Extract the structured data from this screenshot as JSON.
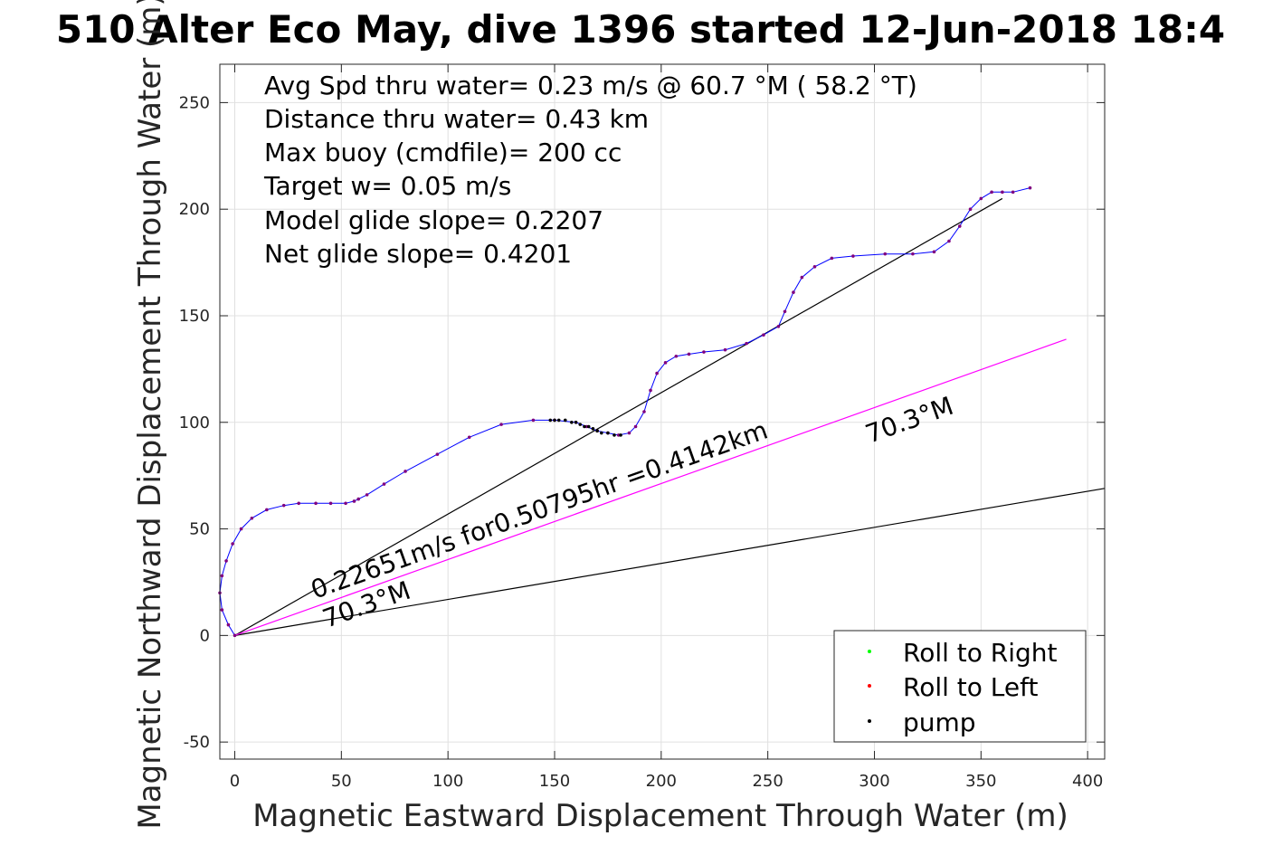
{
  "chart_data": {
    "type": "line",
    "title": "510 Alter Eco May, dive 1396 started 12-Jun-2018 18:4",
    "xlabel": "Magnetic Eastward Displacement Through Water (m)",
    "ylabel": "Magnetic Northward Displacement Through Water (m)",
    "xlim": [
      -7,
      408
    ],
    "ylim": [
      -58,
      268
    ],
    "xticks": [
      0,
      50,
      100,
      150,
      200,
      250,
      300,
      350,
      400
    ],
    "yticks": [
      -50,
      0,
      50,
      100,
      150,
      200,
      250
    ],
    "grid": true,
    "legend_position": "bottom-right",
    "annotations": [
      "Avg Spd thru water=  0.23 m/s @  60.7 °M ( 58.2 °T)",
      "Distance thru water=  0.43 km",
      "Max buoy (cmdfile)= 200 cc",
      "Target w= 0.05 m/s",
      "Model glide slope= 0.2207",
      "Net glide slope= 0.4201"
    ],
    "line_labels": {
      "speed": "0.22651m/s for0.50795hr =0.4142km",
      "heading_near": "70.3°M",
      "heading_far": "70.3°M"
    },
    "track": {
      "color": "#0000ff",
      "x": [
        0,
        -3,
        -6,
        -7,
        -6,
        -4,
        -1,
        3,
        8,
        15,
        23,
        30,
        38,
        45,
        52,
        56,
        58,
        62,
        70,
        80,
        95,
        110,
        125,
        140,
        150,
        160,
        165,
        170,
        175,
        180,
        185,
        188,
        192,
        195,
        198,
        202,
        207,
        213,
        220,
        230,
        240,
        248,
        255,
        258,
        262,
        266,
        272,
        280,
        290,
        305,
        318,
        328,
        335,
        340,
        345,
        350,
        355,
        360,
        365,
        373
      ],
      "y": [
        0,
        5,
        12,
        20,
        28,
        35,
        43,
        50,
        55,
        59,
        61,
        62,
        62,
        62,
        62,
        63,
        64,
        66,
        71,
        77,
        85,
        93,
        99,
        101,
        101,
        100,
        98,
        96,
        95,
        94,
        95,
        98,
        105,
        115,
        123,
        128,
        131,
        132,
        133,
        134,
        137,
        141,
        145,
        152,
        161,
        168,
        173,
        177,
        178,
        179,
        179,
        180,
        185,
        192,
        200,
        205,
        208,
        208,
        208,
        210
      ]
    },
    "pump_points": {
      "color": "#000000",
      "x": [
        148,
        150,
        152,
        155,
        158,
        160,
        162,
        164,
        166,
        168,
        170,
        172,
        175,
        178,
        181
      ],
      "y": [
        101,
        101,
        101,
        101,
        100,
        100,
        99,
        98,
        98,
        97,
        96,
        95,
        95,
        94,
        94
      ]
    },
    "reference_lines": [
      {
        "color": "#000000",
        "x": [
          0,
          360
        ],
        "y": [
          0,
          205
        ]
      },
      {
        "color": "#000000",
        "x": [
          0,
          408
        ],
        "y": [
          0,
          69
        ]
      },
      {
        "color": "#ff00ff",
        "x": [
          0,
          390
        ],
        "y": [
          0,
          139
        ]
      }
    ],
    "legend": [
      {
        "label": "Roll to Right",
        "color": "#00ff00"
      },
      {
        "label": "Roll to Left",
        "color": "#ff0000"
      },
      {
        "label": "pump",
        "color": "#000000"
      }
    ]
  }
}
